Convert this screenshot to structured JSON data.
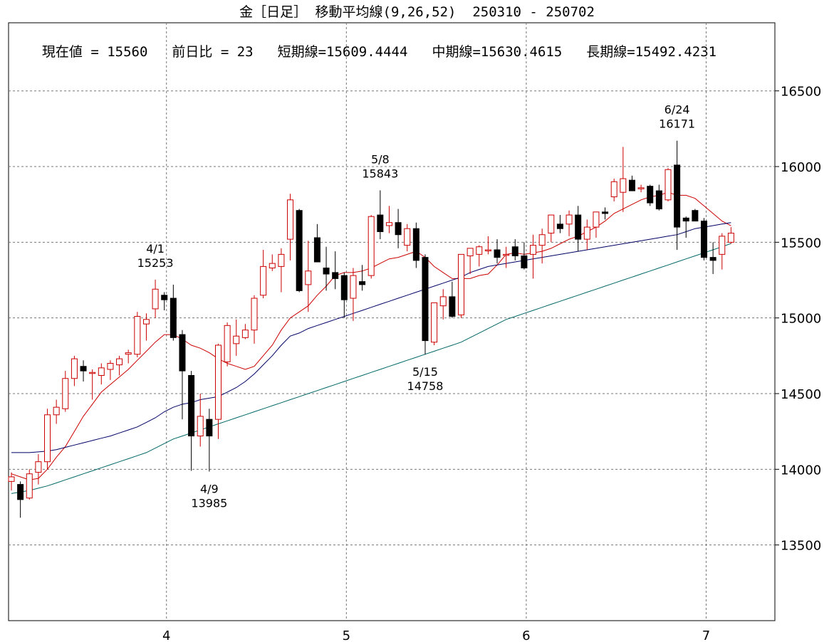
{
  "title": "金［日足］ 移動平均線(9,26,52)  250310 - 250702",
  "info": {
    "current": "現在値 = 15560",
    "change": "前日比 = 23",
    "short": "短期線=15609.4444",
    "mid": "中期線=15630.4615",
    "long": "長期線=15492.4231"
  },
  "colors": {
    "up": "#cc0000",
    "down": "#000000",
    "ma_short": "#cc0000",
    "ma_mid": "#000066",
    "ma_long": "#006666",
    "grid": "#777777"
  },
  "chart_data": {
    "type": "candlestick",
    "ylim": [
      13000,
      16950
    ],
    "y_ticks": [
      13500,
      14000,
      14500,
      15000,
      15500,
      16000,
      16500
    ],
    "x_ticks": [
      {
        "label": "4",
        "index": 17
      },
      {
        "label": "5",
        "index": 37
      },
      {
        "label": "6",
        "index": 57
      },
      {
        "label": "7",
        "index": 77
      }
    ],
    "candles": [
      [
        13920,
        13980,
        13860,
        13950
      ],
      [
        13900,
        13920,
        13680,
        13800
      ],
      [
        13810,
        14000,
        13800,
        13970
      ],
      [
        13980,
        14100,
        13900,
        14050
      ],
      [
        14050,
        14400,
        14000,
        14360
      ],
      [
        14360,
        14460,
        14300,
        14410
      ],
      [
        14400,
        14650,
        14380,
        14600
      ],
      [
        14600,
        14750,
        14550,
        14730
      ],
      [
        14680,
        14720,
        14580,
        14650
      ],
      [
        14640,
        14660,
        14460,
        14640
      ],
      [
        14620,
        14700,
        14560,
        14670
      ],
      [
        14660,
        14720,
        14590,
        14700
      ],
      [
        14690,
        14750,
        14620,
        14730
      ],
      [
        14760,
        14790,
        14700,
        14770
      ],
      [
        14760,
        15040,
        14740,
        15010
      ],
      [
        14960,
        15030,
        14850,
        14990
      ],
      [
        15060,
        15253,
        15000,
        15190
      ],
      [
        15150,
        15170,
        15050,
        15120
      ],
      [
        15130,
        15220,
        14850,
        14870
      ],
      [
        14890,
        14920,
        14330,
        14650
      ],
      [
        14620,
        14650,
        13990,
        14220
      ],
      [
        14220,
        14500,
        14150,
        14350
      ],
      [
        14330,
        14400,
        13985,
        14220
      ],
      [
        14330,
        14830,
        14200,
        14820
      ],
      [
        14710,
        14970,
        14680,
        14950
      ],
      [
        14830,
        14990,
        14750,
        14880
      ],
      [
        14870,
        14960,
        14860,
        14920
      ],
      [
        14920,
        15150,
        14830,
        15130
      ],
      [
        15150,
        15450,
        15130,
        15340
      ],
      [
        15330,
        15420,
        15310,
        15360
      ],
      [
        15340,
        15460,
        15170,
        15420
      ],
      [
        15520,
        15820,
        15380,
        15780
      ],
      [
        15710,
        15720,
        15170,
        15180
      ],
      [
        15220,
        15510,
        15040,
        15310
      ],
      [
        15530,
        15620,
        15370,
        15370
      ],
      [
        15330,
        15470,
        15180,
        15290
      ],
      [
        15300,
        15440,
        15190,
        15260
      ],
      [
        15280,
        15300,
        15000,
        15120
      ],
      [
        15130,
        15330,
        14980,
        15280
      ],
      [
        15240,
        15350,
        15180,
        15220
      ],
      [
        15280,
        15680,
        15260,
        15670
      ],
      [
        15680,
        15843,
        15520,
        15570
      ],
      [
        15610,
        15740,
        15560,
        15630
      ],
      [
        15630,
        15720,
        15460,
        15550
      ],
      [
        15480,
        15620,
        15440,
        15590
      ],
      [
        15590,
        15630,
        15330,
        15380
      ],
      [
        15400,
        15420,
        14758,
        14850
      ],
      [
        14840,
        15100,
        14820,
        15100
      ],
      [
        15080,
        15190,
        14990,
        15140
      ],
      [
        15140,
        15240,
        15000,
        15010
      ],
      [
        15020,
        15400,
        15000,
        15420
      ],
      [
        15410,
        15460,
        15290,
        15460
      ],
      [
        15420,
        15480,
        15340,
        15470
      ],
      [
        15450,
        15540,
        15420,
        15450
      ],
      [
        15450,
        15520,
        15360,
        15400
      ],
      [
        15420,
        15470,
        15330,
        15420
      ],
      [
        15470,
        15520,
        15380,
        15410
      ],
      [
        15410,
        15500,
        15320,
        15330
      ],
      [
        15420,
        15550,
        15260,
        15480
      ],
      [
        15480,
        15590,
        15360,
        15550
      ],
      [
        15560,
        15680,
        15500,
        15680
      ],
      [
        15620,
        15680,
        15560,
        15590
      ],
      [
        15620,
        15710,
        15540,
        15680
      ],
      [
        15680,
        15740,
        15440,
        15520
      ],
      [
        15520,
        15650,
        15450,
        15600
      ],
      [
        15600,
        15700,
        15530,
        15700
      ],
      [
        15700,
        15730,
        15650,
        15690
      ],
      [
        15800,
        15920,
        15770,
        15900
      ],
      [
        15830,
        16130,
        15700,
        15920
      ],
      [
        15910,
        15940,
        15860,
        15840
      ],
      [
        15860,
        15880,
        15830,
        15860
      ],
      [
        15870,
        15880,
        15740,
        15760
      ],
      [
        15840,
        15880,
        15710,
        15720
      ],
      [
        15780,
        15990,
        15770,
        15980
      ],
      [
        16010,
        16171,
        15450,
        15600
      ],
      [
        15660,
        15670,
        15530,
        15640
      ],
      [
        15710,
        15720,
        15640,
        15640
      ],
      [
        15640,
        15660,
        15380,
        15400
      ],
      [
        15400,
        15500,
        15290,
        15380
      ],
      [
        15420,
        15560,
        15320,
        15540
      ],
      [
        15500,
        15600,
        15490,
        15560
      ]
    ],
    "series": [
      {
        "name": "短期線",
        "values": [
          13970,
          13950,
          13930,
          13940,
          14000,
          14080,
          14150,
          14250,
          14350,
          14430,
          14510,
          14560,
          14610,
          14660,
          14720,
          14780,
          14840,
          14890,
          14890,
          14860,
          14820,
          14800,
          14770,
          14730,
          14700,
          14680,
          14660,
          14680,
          14750,
          14820,
          14920,
          15000,
          15040,
          15080,
          15150,
          15210,
          15280,
          15300,
          15300,
          15310,
          15330,
          15360,
          15390,
          15400,
          15420,
          15440,
          15400,
          15340,
          15300,
          15260,
          15260,
          15260,
          15280,
          15290,
          15350,
          15420,
          15430,
          15420,
          15430,
          15440,
          15460,
          15490,
          15520,
          15540,
          15570,
          15600,
          15640,
          15690,
          15720,
          15750,
          15780,
          15800,
          15810,
          15830,
          15810,
          15810,
          15790,
          15740,
          15690,
          15640,
          15609
        ]
      },
      {
        "name": "中期線",
        "values": [
          14110,
          14110,
          14110,
          14115,
          14120,
          14130,
          14145,
          14160,
          14175,
          14190,
          14205,
          14220,
          14240,
          14260,
          14280,
          14310,
          14340,
          14380,
          14410,
          14430,
          14440,
          14460,
          14470,
          14480,
          14510,
          14540,
          14580,
          14630,
          14690,
          14750,
          14820,
          14880,
          14900,
          14930,
          14950,
          14970,
          14990,
          15010,
          15030,
          15050,
          15070,
          15090,
          15110,
          15130,
          15150,
          15170,
          15190,
          15210,
          15230,
          15250,
          15270,
          15300,
          15320,
          15340,
          15350,
          15360,
          15370,
          15380,
          15390,
          15400,
          15410,
          15420,
          15430,
          15440,
          15450,
          15460,
          15470,
          15480,
          15490,
          15500,
          15510,
          15520,
          15530,
          15540,
          15550,
          15570,
          15590,
          15600,
          15610,
          15620,
          15630
        ]
      },
      {
        "name": "長期線",
        "values": [
          13840,
          13850,
          13860,
          13875,
          13890,
          13910,
          13930,
          13950,
          13970,
          13990,
          14010,
          14030,
          14050,
          14070,
          14090,
          14110,
          14140,
          14170,
          14200,
          14220,
          14240,
          14260,
          14280,
          14300,
          14320,
          14340,
          14360,
          14380,
          14400,
          14420,
          14440,
          14460,
          14480,
          14500,
          14520,
          14540,
          14560,
          14580,
          14600,
          14620,
          14640,
          14660,
          14680,
          14700,
          14720,
          14740,
          14760,
          14780,
          14800,
          14820,
          14840,
          14870,
          14900,
          14930,
          14960,
          14990,
          15010,
          15030,
          15050,
          15070,
          15090,
          15110,
          15130,
          15150,
          15170,
          15190,
          15210,
          15230,
          15250,
          15270,
          15290,
          15310,
          15330,
          15350,
          15370,
          15390,
          15410,
          15430,
          15450,
          15470,
          15492
        ]
      }
    ],
    "annotations": [
      {
        "date": "4/1",
        "value": "15253",
        "index": 16,
        "price": 15253,
        "pos": "above"
      },
      {
        "date": "4/9",
        "value": "13985",
        "index": 22,
        "price": 13985,
        "pos": "below"
      },
      {
        "date": "5/8",
        "value": "15843",
        "index": 41,
        "price": 15843,
        "pos": "above"
      },
      {
        "date": "5/15",
        "value": "14758",
        "index": 46,
        "price": 14758,
        "pos": "below"
      },
      {
        "date": "6/24",
        "value": "16171",
        "index": 74,
        "price": 16171,
        "pos": "above"
      }
    ]
  }
}
